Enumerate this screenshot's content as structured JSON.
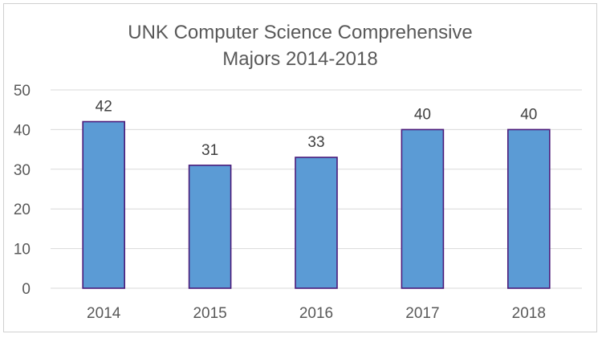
{
  "chart_data": {
    "type": "bar",
    "title_lines": [
      "UNK  Computer Science Comprehensive",
      "Majors 2014-2018"
    ],
    "categories": [
      "2014",
      "2015",
      "2016",
      "2017",
      "2018"
    ],
    "values": [
      42,
      31,
      33,
      40,
      40
    ],
    "ylim": [
      0,
      50
    ],
    "yticks": [
      "0",
      "10",
      "20",
      "30",
      "40",
      "50"
    ],
    "xlabel": "",
    "ylabel": "",
    "grid": true,
    "legend": "none",
    "bar_color": "#5b9bd5",
    "bar_outline_color": "#4b1b7a"
  }
}
